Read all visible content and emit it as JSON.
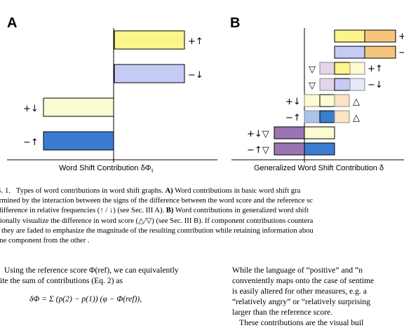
{
  "panels": {
    "a_label": "A",
    "b_label": "B",
    "a_xlabel": "Word Shift Contribution δΦ",
    "a_xlabel_sub": "τ",
    "b_xlabel": "Generalized Word Shift Contribution δ"
  },
  "panel_a_bars": [
    {
      "label": "+↑",
      "value": 1.0,
      "color": "#fbf58a"
    },
    {
      "label": "−↓",
      "value": 1.0,
      "color": "#c5cbf5"
    },
    {
      "label": "+↓",
      "value": -1.0,
      "color": "#fdfbd2"
    },
    {
      "label": "−↑",
      "value": -1.0,
      "color": "#3a7dd0"
    }
  ],
  "panel_b_rows": [
    {
      "label": "+",
      "prefix": ""
    },
    {
      "label": "−",
      "prefix": ""
    },
    {
      "label": "+↑",
      "prefix": "▽"
    },
    {
      "label": "−↓",
      "prefix": "▽"
    },
    {
      "label": "△",
      "prefix": "+↓"
    },
    {
      "label": "△",
      "prefix": "−↑"
    },
    {
      "label": "",
      "prefix": "+↓▽"
    },
    {
      "label": "",
      "prefix": "−↑▽"
    }
  ],
  "caption": {
    "fig": "G. 1.",
    "line1_a": "Types of word contributions in word shift graphs.",
    "line1_b": "A)",
    "line1_c": "Word contributions in basic word shift gra",
    "line2": "ermined by the interaction between the signs of the difference between the word score and the reference sc",
    "line3_a": "difference in relative frequencies (↑ / ↓) (see Sec. III A).",
    "line3_b": "B)",
    "line3_c": "Word contributions in generalized word shift",
    "line4": "itionally visualize the difference in word score (△/▽) (see Sec. III B). If component contributions countera",
    "line5": "n they are faded to emphasize the magnitude of the resulting contribution while retaining information abou",
    "line6": "one component from the other ."
  },
  "body_left": {
    "line1": "Using the reference score Φ(ref), we can equivalently",
    "line2": "rite the sum of contributions (Eq. 2) as",
    "equation": "δΦ = Σ (p(2) − p(1)) (φ − Φ(ref)),"
  },
  "body_right": {
    "line1": "While the language of “positive” and “n",
    "line2": "conveniently maps onto the case of sentime",
    "line3": "is easily altered for other measures, e.g. a",
    "line4": "“relatively angry” or “relatively surprising",
    "line5": "larger than the reference score.",
    "line6": "These contributions are the visual buil"
  }
}
